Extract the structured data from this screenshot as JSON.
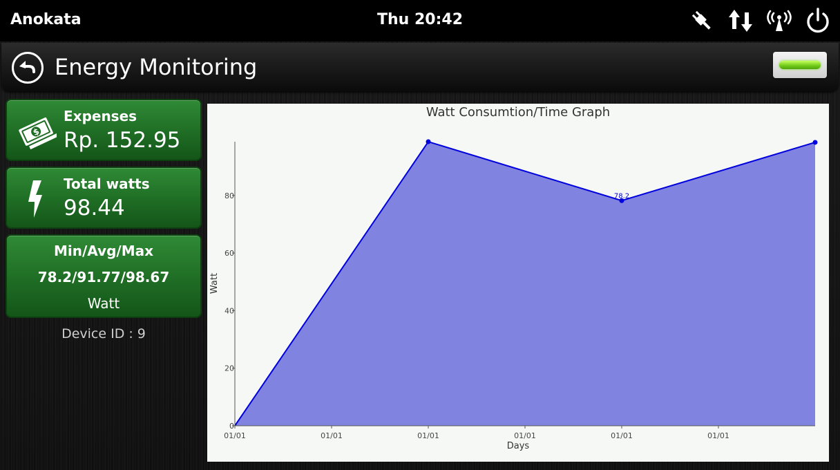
{
  "status_bar": {
    "app_name": "Anokata",
    "clock": "Thu 20:42",
    "icons": [
      "plug-icon",
      "data-transfer-icon",
      "wifi-signal-icon",
      "power-icon"
    ]
  },
  "header": {
    "title": "Energy Monitoring",
    "back_icon": "back-arrow-icon",
    "menu_button_color": "#7de01f"
  },
  "cards": {
    "expenses": {
      "label": "Expenses",
      "value": "Rp. 152.95",
      "icon": "money-icon"
    },
    "total_watts": {
      "label": "Total watts",
      "value": "98.44",
      "icon": "lightning-icon"
    },
    "stats": {
      "label": "Min/Avg/Max",
      "value": "78.2/91.77/98.67",
      "unit": "Watt"
    }
  },
  "device": {
    "id_text": "Device ID : 9"
  },
  "colors": {
    "card_green": "#1f6d25",
    "chart_fill": "#8083e0",
    "chart_line": "#0000dd",
    "header_bg": "#1d1d1d"
  },
  "chart_data": {
    "type": "area",
    "title": "Watt Consumtion/Time Graph",
    "xlabel": "Days",
    "ylabel": "Watt",
    "x_tick_labels": [
      "01/01",
      "01/01",
      "01/01",
      "01/01",
      "01/01",
      "01/01"
    ],
    "y_ticks": [
      0,
      20,
      40,
      60,
      80
    ],
    "ylim": [
      0,
      98.67
    ],
    "series": [
      {
        "values": [
          0,
          98.67,
          78.2,
          98.44
        ]
      }
    ],
    "x_positions": [
      0,
      1.9,
      3.8,
      5.7
    ],
    "xlim": [
      0,
      5.7
    ],
    "data_labels": [
      {
        "index": 2,
        "text": "78.2"
      }
    ],
    "grid": false,
    "legend": "none"
  }
}
